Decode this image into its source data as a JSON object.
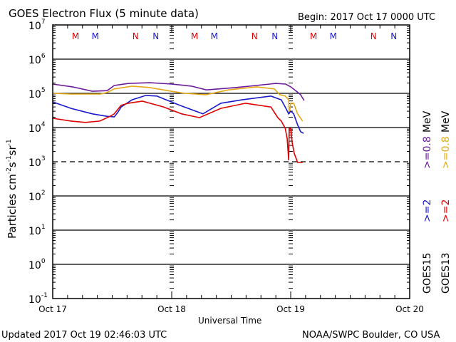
{
  "chart_data": {
    "type": "line",
    "title": "GOES Electron Flux (5 minute data)",
    "begin_label": "Begin: 2017 Oct 17 0000 UTC",
    "xlabel": "Universal Time",
    "ylabel_main": "Particles cm",
    "ylabel_parts": [
      "-2",
      "s",
      "-1",
      "sr",
      "-1"
    ],
    "x_unit": "hours since 2017 Oct 17 0000 UTC",
    "xlim": [
      0,
      72
    ],
    "x_ticks": [
      {
        "h": 0,
        "label": "Oct 17"
      },
      {
        "h": 24,
        "label": "Oct 18"
      },
      {
        "h": 48,
        "label": "Oct 19"
      },
      {
        "h": 72,
        "label": "Oct 20"
      }
    ],
    "y_scale": "log",
    "ylim_log10": [
      -1,
      7
    ],
    "y_ticks": [
      {
        "e": "7"
      },
      {
        "e": "6"
      },
      {
        "e": "5"
      },
      {
        "e": "4"
      },
      {
        "e": "3"
      },
      {
        "e": "2"
      },
      {
        "e": "1"
      },
      {
        "e": "0"
      },
      {
        "e": "-1"
      }
    ],
    "threshold_log10": 3,
    "mn_markers": [
      {
        "label": "M",
        "color": "#dd0000",
        "h": 4.6
      },
      {
        "label": "M",
        "color": "#1a1acc",
        "h": 8.6
      },
      {
        "label": "N",
        "color": "#dd0000",
        "h": 16.7
      },
      {
        "label": "N",
        "color": "#1a1acc",
        "h": 20.8
      },
      {
        "label": "M",
        "color": "#dd0000",
        "h": 28.6
      },
      {
        "label": "M",
        "color": "#1a1acc",
        "h": 32.6
      },
      {
        "label": "N",
        "color": "#dd0000",
        "h": 40.7
      },
      {
        "label": "N",
        "color": "#1a1acc",
        "h": 44.8
      },
      {
        "label": "M",
        "color": "#dd0000",
        "h": 52.6
      },
      {
        "label": "M",
        "color": "#1a1acc",
        "h": 56.6
      },
      {
        "label": "N",
        "color": "#dd0000",
        "h": 64.7
      },
      {
        "label": "N",
        "color": "#1a1acc",
        "h": 68.8
      }
    ],
    "legend": {
      "rows": [
        {
          "sat": "GOES15",
          "a": ">=2",
          "a_color": "#1a1acc",
          "b": ">=0.8",
          "b_color": "#6a1b9a",
          "unit": "MeV"
        },
        {
          "sat": "GOES13",
          "a": ">=2",
          "a_color": "#dd0000",
          "b": ">=0.8",
          "b_color": "#e6a817",
          "unit": "MeV"
        }
      ],
      "position": "right-outside"
    },
    "series": [
      {
        "name": "GOES15 >=0.8 MeV",
        "color": "#6a1b9a",
        "x": [
          0,
          4,
          8,
          11,
          12.4,
          15.3,
          19.6,
          24,
          28,
          31,
          37,
          41,
          45,
          47,
          48,
          49,
          50,
          50.7
        ],
        "y_log10": [
          5.27,
          5.19,
          5.06,
          5.08,
          5.23,
          5.29,
          5.31,
          5.27,
          5.21,
          5.1,
          5.17,
          5.23,
          5.29,
          5.27,
          5.19,
          5.08,
          4.96,
          4.79
        ]
      },
      {
        "name": "GOES13 >=0.8 MeV",
        "color": "#e6a817",
        "x": [
          0,
          3.7,
          9.5,
          10.9,
          12.4,
          16,
          19.5,
          23.9,
          26.7,
          30.9,
          35.4,
          41.1,
          44.7,
          45.8,
          46.9,
          47.6,
          47.7,
          48,
          48.6,
          49.4,
          50.4
        ],
        "y_log10": [
          5.0,
          4.98,
          4.98,
          5.02,
          5.13,
          5.21,
          5.17,
          5.06,
          5.0,
          4.96,
          5.1,
          5.19,
          5.13,
          4.96,
          4.92,
          4.81,
          4.4,
          4.71,
          4.71,
          4.4,
          4.19
        ]
      },
      {
        "name": "GOES15 >=2 MeV",
        "color": "#1a1acc",
        "x": [
          0,
          3.7,
          8,
          10.9,
          12.4,
          13.1,
          13.8,
          16,
          18.8,
          21,
          23.9,
          26,
          30.3,
          33.9,
          38.2,
          44,
          46.1,
          46.9,
          47.6,
          48,
          48.6,
          49.4,
          50,
          50.6
        ],
        "y_log10": [
          4.75,
          4.56,
          4.4,
          4.33,
          4.31,
          4.44,
          4.6,
          4.81,
          4.94,
          4.92,
          4.75,
          4.63,
          4.4,
          4.71,
          4.81,
          4.92,
          4.81,
          4.6,
          4.4,
          4.48,
          4.4,
          4.08,
          3.88,
          3.83
        ]
      },
      {
        "name": "GOES13 >=2 MeV",
        "color": "#dd0000",
        "x": [
          0,
          3.7,
          6.6,
          9.5,
          11.6,
          12.4,
          13.8,
          15.2,
          18.1,
          22.4,
          26,
          29.6,
          33.9,
          38.9,
          44,
          45.4,
          46.1,
          46.9,
          47.3,
          47.6,
          47.7,
          48,
          48.3,
          48.7,
          49.4,
          50.4
        ],
        "y_log10": [
          4.27,
          4.19,
          4.15,
          4.19,
          4.33,
          4.4,
          4.65,
          4.71,
          4.77,
          4.6,
          4.4,
          4.29,
          4.56,
          4.71,
          4.6,
          4.29,
          4.19,
          3.98,
          3.67,
          3.04,
          3.98,
          3.98,
          3.56,
          3.25,
          2.98,
          2.98
        ]
      }
    ]
  },
  "footer": {
    "updated": "Updated 2017 Oct 19 02:46:03 UTC",
    "credit": "NOAA/SWPC Boulder, CO USA"
  }
}
